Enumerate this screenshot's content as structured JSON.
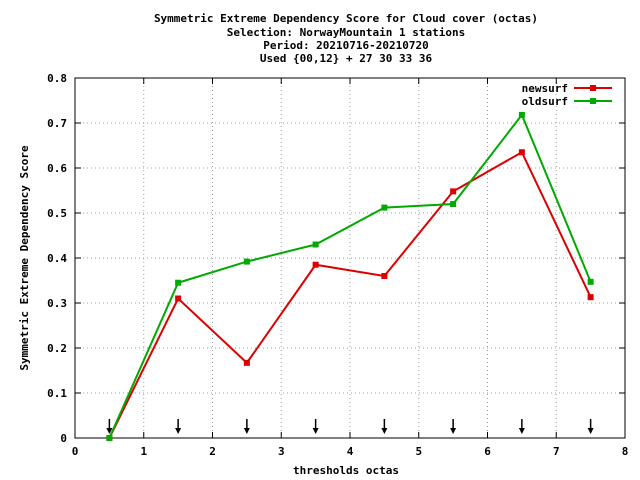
{
  "chart_data": {
    "type": "line",
    "title_lines": [
      "Symmetric Extreme Dependency Score  for Cloud cover (octas)",
      "Selection: NorwayMountain      1 stations",
      "Period: 20210716-20210720",
      "Used {00,12} + 27 30 33 36"
    ],
    "xlabel": "thresholds octas",
    "ylabel": "Symmetric Extreme Dependency Score",
    "xlim": [
      0,
      8
    ],
    "ylim": [
      0,
      0.8
    ],
    "xticks": [
      0,
      1,
      2,
      3,
      4,
      5,
      6,
      7,
      8
    ],
    "yticks": [
      0,
      0.1,
      0.2,
      0.3,
      0.4,
      0.5,
      0.6,
      0.7,
      0.8
    ],
    "xtick_labels": [
      "0",
      "1",
      "2",
      "3",
      "4",
      "5",
      "6",
      "7",
      "8"
    ],
    "ytick_labels": [
      "0",
      "0.1",
      "0.2",
      "0.3",
      "0.4",
      "0.5",
      "0.6",
      "0.7",
      "0.8"
    ],
    "grid": true,
    "legend_position": "top-right",
    "x": [
      0.5,
      1.5,
      2.5,
      3.5,
      4.5,
      5.5,
      6.5,
      7.5
    ],
    "series": [
      {
        "name": "newsurf",
        "color": "#dd0000",
        "values": [
          0.0,
          0.31,
          0.167,
          0.385,
          0.36,
          0.548,
          0.635,
          0.313
        ]
      },
      {
        "name": "oldsurf",
        "color": "#00aa00",
        "values": [
          0.0,
          0.345,
          0.392,
          0.43,
          0.512,
          0.52,
          0.718,
          0.347
        ]
      }
    ],
    "arrow_markers_x": [
      0.5,
      1.5,
      2.5,
      3.5,
      4.5,
      5.5,
      6.5,
      7.5
    ]
  }
}
